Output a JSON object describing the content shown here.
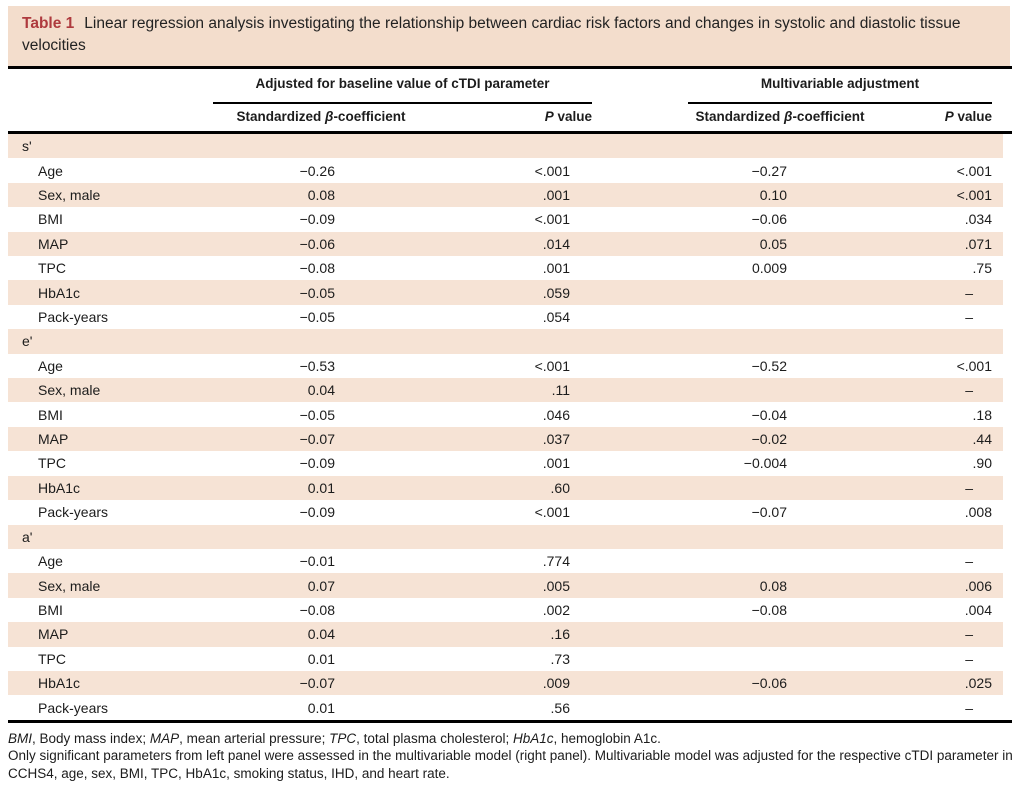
{
  "colors": {
    "caption_bg": "#f3ddcc",
    "row_shade": "#f6e3d5",
    "accent_red": "#ae3a3e"
  },
  "title": {
    "label": "Table 1",
    "text": "Linear regression analysis investigating the relationship between cardiac risk factors and changes in systolic and diastolic tissue velocities"
  },
  "headers": {
    "group_left": "Adjusted for baseline value of cTDI parameter",
    "group_right": "Multivariable adjustment",
    "beta_label_prefix": "Standardized ",
    "beta_symbol": "β",
    "beta_label_suffix": "-coefficient",
    "p_symbol": "P",
    "p_label_suffix": " value"
  },
  "table": {
    "dash": "–",
    "sections": [
      {
        "name": "s'",
        "rows": [
          {
            "label": "Age",
            "b1": "−0.26",
            "p1": "<.001",
            "b2": "−0.27",
            "p2": "<.001"
          },
          {
            "label": "Sex, male",
            "b1": "0.08",
            "p1": ".001",
            "b2": "0.10",
            "p2": "<.001"
          },
          {
            "label": "BMI",
            "b1": "−0.09",
            "p1": "<.001",
            "b2": "−0.06",
            "p2": ".034"
          },
          {
            "label": "MAP",
            "b1": "−0.06",
            "p1": ".014",
            "b2": "0.05",
            "p2": ".071"
          },
          {
            "label": "TPC",
            "b1": "−0.08",
            "p1": ".001",
            "b2": "0.009",
            "p2": ".75"
          },
          {
            "label": "HbA1c",
            "b1": "−0.05",
            "p1": ".059",
            "b2": "",
            "p2": "–"
          },
          {
            "label": "Pack-years",
            "b1": "−0.05",
            "p1": ".054",
            "b2": "",
            "p2": "–"
          }
        ]
      },
      {
        "name": "e'",
        "rows": [
          {
            "label": "Age",
            "b1": "−0.53",
            "p1": "<.001",
            "b2": "−0.52",
            "p2": "<.001"
          },
          {
            "label": "Sex, male",
            "b1": "0.04",
            "p1": ".11",
            "b2": "",
            "p2": "–"
          },
          {
            "label": "BMI",
            "b1": "−0.05",
            "p1": ".046",
            "b2": "−0.04",
            "p2": ".18"
          },
          {
            "label": "MAP",
            "b1": "−0.07",
            "p1": ".037",
            "b2": "−0.02",
            "p2": ".44"
          },
          {
            "label": "TPC",
            "b1": "−0.09",
            "p1": ".001",
            "b2": "−0.004",
            "p2": ".90"
          },
          {
            "label": "HbA1c",
            "b1": "0.01",
            "p1": ".60",
            "b2": "",
            "p2": "–"
          },
          {
            "label": "Pack-years",
            "b1": "−0.09",
            "p1": "<.001",
            "b2": "−0.07",
            "p2": ".008"
          }
        ]
      },
      {
        "name": "a'",
        "rows": [
          {
            "label": "Age",
            "b1": "−0.01",
            "p1": ".774",
            "b2": "",
            "p2": "–"
          },
          {
            "label": "Sex, male",
            "b1": "0.07",
            "p1": ".005",
            "b2": "0.08",
            "p2": ".006"
          },
          {
            "label": "BMI",
            "b1": "−0.08",
            "p1": ".002",
            "b2": "−0.08",
            "p2": ".004"
          },
          {
            "label": "MAP",
            "b1": "0.04",
            "p1": ".16",
            "b2": "",
            "p2": "–"
          },
          {
            "label": "TPC",
            "b1": "0.01",
            "p1": ".73",
            "b2": "",
            "p2": "–"
          },
          {
            "label": "HbA1c",
            "b1": "−0.07",
            "p1": ".009",
            "b2": "−0.06",
            "p2": ".025"
          },
          {
            "label": "Pack-years",
            "b1": "0.01",
            "p1": ".56",
            "b2": "",
            "p2": "–"
          }
        ]
      }
    ]
  },
  "footnotes": {
    "abbrev_parts": [
      {
        "text": "BMI",
        "italic": true
      },
      {
        "text": ", Body mass index; ",
        "italic": false
      },
      {
        "text": "MAP",
        "italic": true
      },
      {
        "text": ", mean arterial pressure; ",
        "italic": false
      },
      {
        "text": "TPC",
        "italic": true
      },
      {
        "text": ", total plasma cholesterol; ",
        "italic": false
      },
      {
        "text": "HbA1c",
        "italic": true
      },
      {
        "text": ", hemoglobin A1c.",
        "italic": false
      }
    ],
    "note": "Only significant parameters from left panel were assessed in the multivariable model (right panel). Multivariable model was adjusted for the respective cTDI parameter in CCHS4, age, sex, BMI, TPC, HbA1c, smoking status, IHD, and heart rate."
  }
}
